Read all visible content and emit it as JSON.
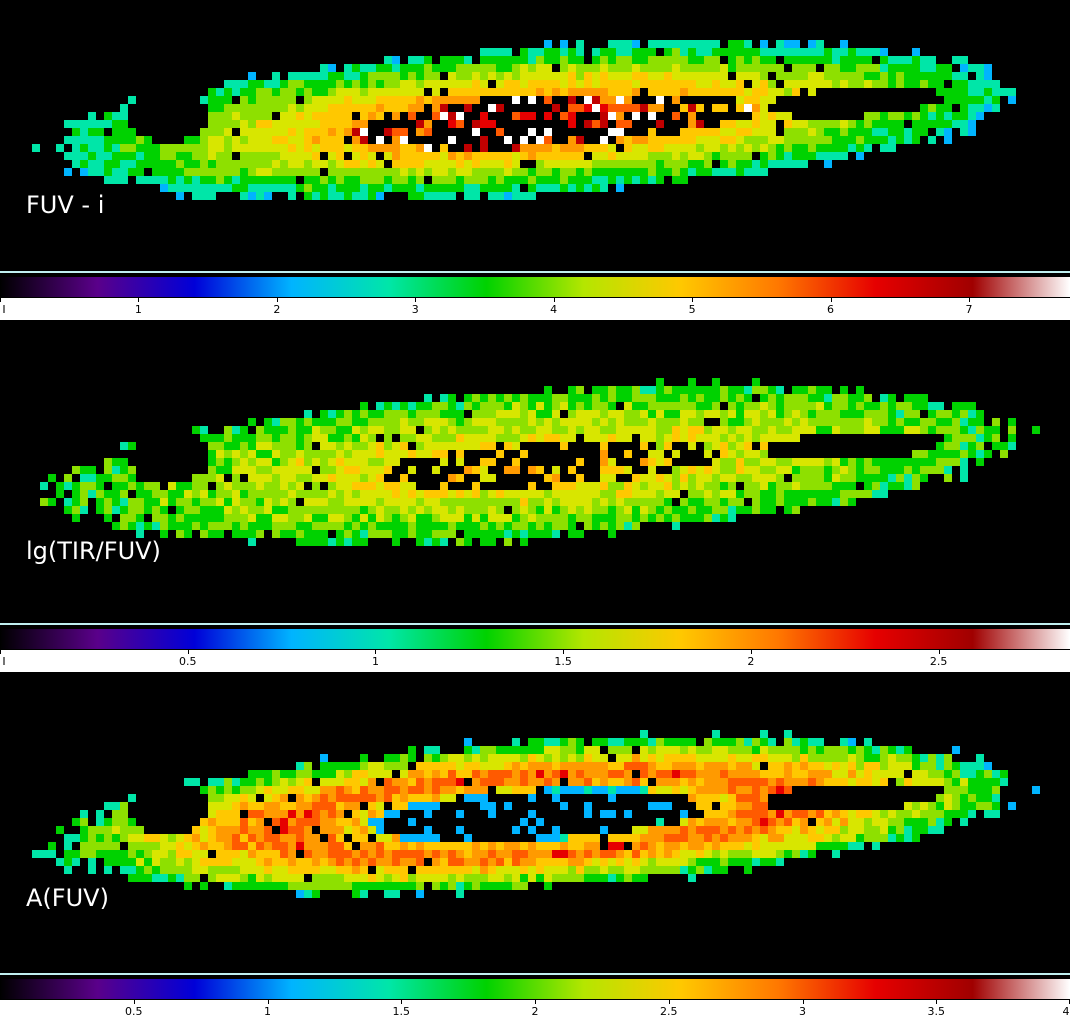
{
  "panels": [
    {
      "label": "FUV - i",
      "colorbar": {
        "ticks": [
          {
            "value": 0,
            "text": "I"
          },
          {
            "value": 1,
            "text": "1"
          },
          {
            "value": 2,
            "text": "2"
          },
          {
            "value": 3,
            "text": "3"
          },
          {
            "value": 4,
            "text": "4"
          },
          {
            "value": 5,
            "text": "5"
          },
          {
            "value": 6,
            "text": "6"
          },
          {
            "value": 7,
            "text": "7"
          }
        ],
        "range": [
          0,
          7.73
        ]
      },
      "palette": "cold-hot",
      "pattern": "fuv"
    },
    {
      "label": "lg(TIR/FUV)",
      "colorbar": {
        "ticks": [
          {
            "value": 0,
            "text": "I"
          },
          {
            "value": 0.5,
            "text": "0.5"
          },
          {
            "value": 1,
            "text": "1"
          },
          {
            "value": 1.5,
            "text": "1.5"
          },
          {
            "value": 2,
            "text": "2"
          },
          {
            "value": 2.5,
            "text": "2.5"
          }
        ],
        "range": [
          0,
          2.85
        ]
      },
      "palette": "warm",
      "pattern": "tir"
    },
    {
      "label": "A(FUV)",
      "colorbar": {
        "ticks": [
          {
            "value": 0.5,
            "text": "0.5"
          },
          {
            "value": 1,
            "text": "1"
          },
          {
            "value": 1.5,
            "text": "1.5"
          },
          {
            "value": 2,
            "text": "2"
          },
          {
            "value": 2.5,
            "text": "2.5"
          },
          {
            "value": 3,
            "text": "3"
          },
          {
            "value": 3.5,
            "text": "3.5"
          },
          {
            "value": 4,
            "text": "4"
          }
        ],
        "range": [
          0,
          4
        ]
      },
      "palette": "inverted",
      "pattern": "afuv"
    }
  ],
  "colorbar_stops": [
    "#000000",
    "#5a008a",
    "#0000d8",
    "#00b4ff",
    "#00e6a8",
    "#00d200",
    "#b4e600",
    "#ffc800",
    "#ff7800",
    "#e60000",
    "#a00000",
    "#ffffff"
  ],
  "colors": {
    "background": "#000000",
    "separator": "#bfeff0",
    "tick_row": "#ffffff",
    "label": "#ffffff"
  }
}
